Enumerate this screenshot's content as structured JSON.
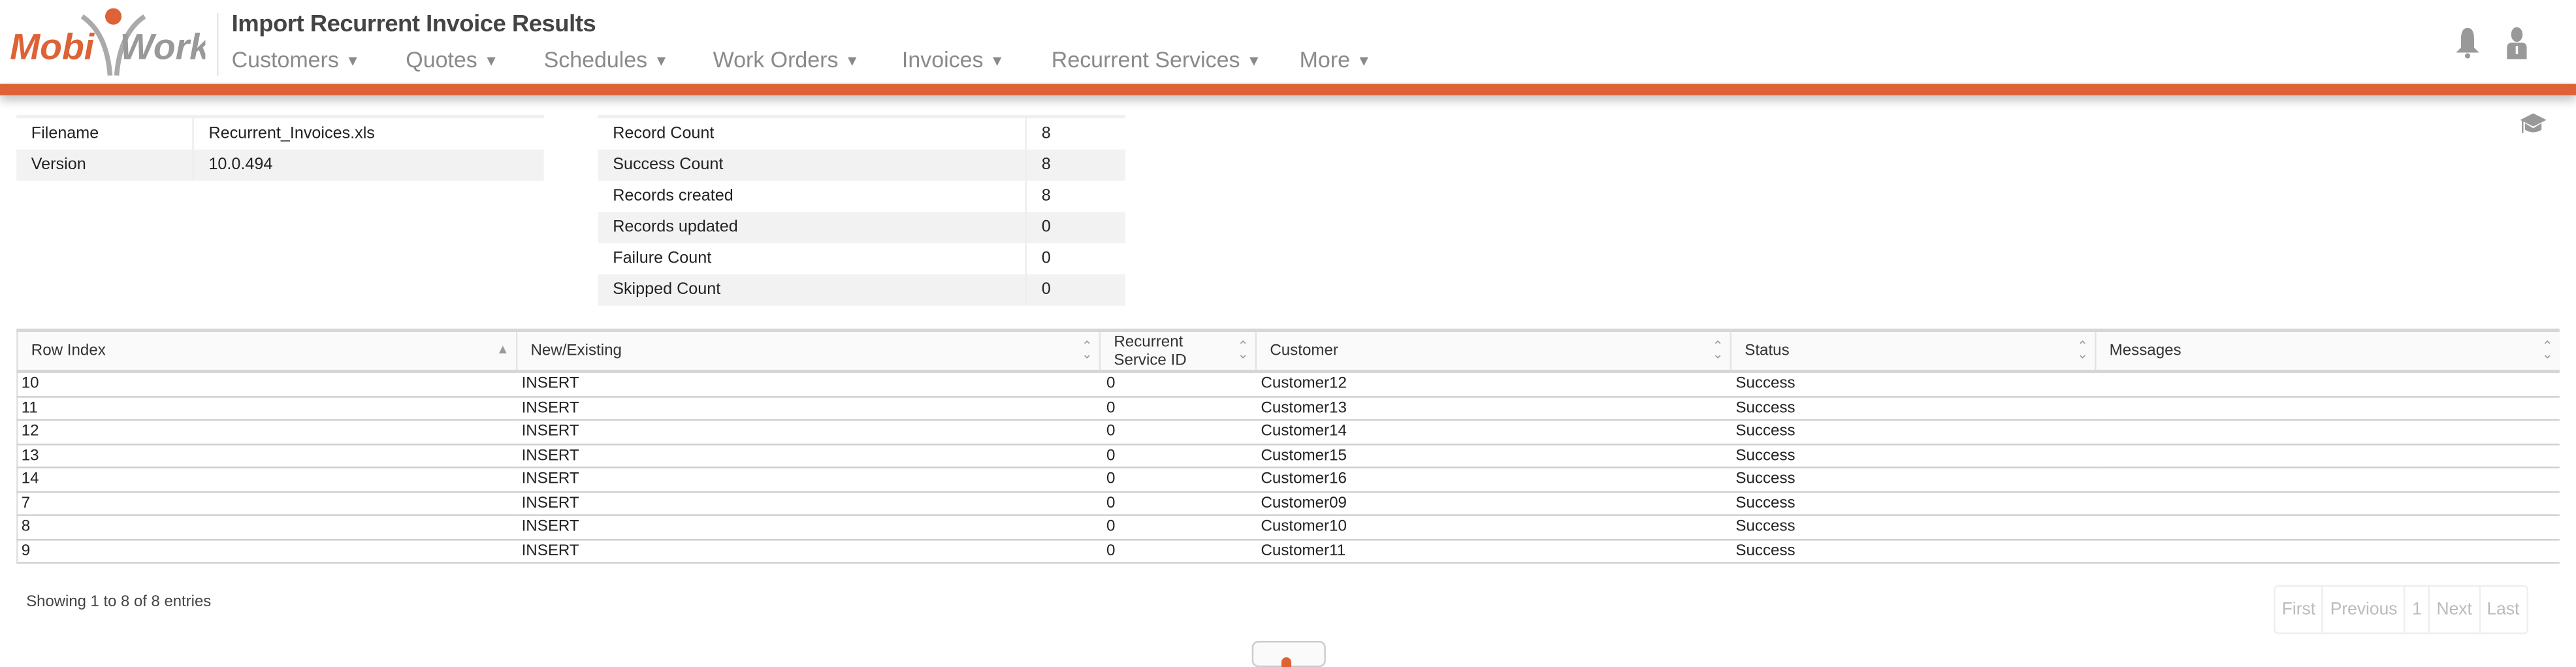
{
  "brand": {
    "logo_text_left": "Mobi",
    "logo_text_right": "Work",
    "accent": "#dd6236"
  },
  "header": {
    "title": "Import Recurrent Invoice Results",
    "nav": [
      {
        "label": "Customers"
      },
      {
        "label": "Quotes"
      },
      {
        "label": "Schedules"
      },
      {
        "label": "Work Orders"
      },
      {
        "label": "Invoices"
      },
      {
        "label": "Recurrent Services"
      },
      {
        "label": "More"
      }
    ],
    "icons": [
      "bell-icon",
      "user-icon",
      "graduation-cap-icon"
    ]
  },
  "file_info": [
    {
      "label": "Filename",
      "value": "Recurrent_Invoices.xls"
    },
    {
      "label": "Version",
      "value": "10.0.494"
    }
  ],
  "counts": [
    {
      "label": "Record Count",
      "value": "8"
    },
    {
      "label": "Success Count",
      "value": "8"
    },
    {
      "label": "Records created",
      "value": "8"
    },
    {
      "label": "Records updated",
      "value": "0"
    },
    {
      "label": "Failure Count",
      "value": "0"
    },
    {
      "label": "Skipped Count",
      "value": "0"
    }
  ],
  "table": {
    "columns": [
      "Row Index",
      "New/Existing",
      "Recurrent Service ID",
      "Customer",
      "Status",
      "Messages"
    ],
    "sorted_column": "Row Index",
    "rows": [
      [
        "10",
        "INSERT",
        "0",
        "Customer12",
        "Success",
        ""
      ],
      [
        "11",
        "INSERT",
        "0",
        "Customer13",
        "Success",
        ""
      ],
      [
        "12",
        "INSERT",
        "0",
        "Customer14",
        "Success",
        ""
      ],
      [
        "13",
        "INSERT",
        "0",
        "Customer15",
        "Success",
        ""
      ],
      [
        "14",
        "INSERT",
        "0",
        "Customer16",
        "Success",
        ""
      ],
      [
        "7",
        "INSERT",
        "0",
        "Customer09",
        "Success",
        ""
      ],
      [
        "8",
        "INSERT",
        "0",
        "Customer10",
        "Success",
        ""
      ],
      [
        "9",
        "INSERT",
        "0",
        "Customer11",
        "Success",
        ""
      ]
    ],
    "info": "Showing 1 to 8 of 8 entries",
    "pagination": [
      "First",
      "Previous",
      "1",
      "Next",
      "Last"
    ]
  }
}
